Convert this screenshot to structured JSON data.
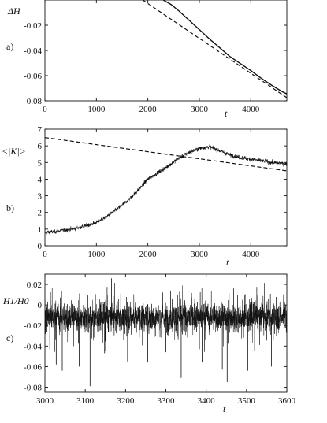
{
  "chart_data": [
    {
      "panel": "a)",
      "type": "line",
      "ylabel": "ΔH",
      "xlabel": "t",
      "xlim": [
        0,
        4700
      ],
      "ylim": [
        -0.08,
        0.0
      ],
      "xticks": [
        0,
        1000,
        2000,
        3000,
        4000
      ],
      "yticks": [
        -0.02,
        -0.04,
        -0.06,
        -0.08
      ],
      "ytick_labels": [
        "-0.02",
        "-0.04",
        "-0.06",
        "-0.08"
      ],
      "series": [
        {
          "style": "solid",
          "x": [
            2300,
            2450,
            2600,
            2800,
            3000,
            3200,
            3400,
            3600,
            3800,
            4000,
            4200,
            4400,
            4600,
            4700
          ],
          "y": [
            0.0,
            -0.0035,
            -0.0085,
            -0.016,
            -0.0235,
            -0.031,
            -0.038,
            -0.045,
            -0.0505,
            -0.056,
            -0.062,
            -0.0675,
            -0.0725,
            -0.0745
          ]
        },
        {
          "style": "dashed",
          "x": [
            1900,
            4700
          ],
          "y": [
            0.0,
            -0.0775
          ]
        }
      ]
    },
    {
      "panel": "b)",
      "type": "line",
      "ylabel": "<|K|>",
      "xlabel": "t",
      "xlim": [
        0,
        4700
      ],
      "ylim": [
        0,
        7
      ],
      "xticks": [
        0,
        1000,
        2000,
        3000,
        4000
      ],
      "yticks": [
        0,
        1,
        2,
        3,
        4,
        5,
        6,
        7
      ],
      "series": [
        {
          "style": "noisy",
          "noise_amplitude": 0.13,
          "x": [
            0,
            200,
            400,
            600,
            800,
            1000,
            1200,
            1400,
            1600,
            1800,
            2000,
            2200,
            2400,
            2600,
            2800,
            3000,
            3200,
            3400,
            3600,
            3800,
            4000,
            4200,
            4400,
            4600,
            4700
          ],
          "y": [
            0.8,
            0.85,
            0.95,
            1.05,
            1.2,
            1.4,
            1.75,
            2.2,
            2.7,
            3.3,
            4.0,
            4.4,
            4.8,
            5.25,
            5.6,
            5.85,
            5.95,
            5.7,
            5.45,
            5.3,
            5.2,
            5.1,
            5.0,
            4.95,
            4.9
          ]
        },
        {
          "style": "dashed",
          "x": [
            0,
            4700
          ],
          "y": [
            6.5,
            4.5
          ]
        }
      ]
    },
    {
      "panel": "c)",
      "type": "line",
      "ylabel": "H1/H0",
      "xlabel": "t",
      "xlim": [
        3000,
        3600
      ],
      "ylim": [
        -0.085,
        0.03
      ],
      "xticks": [
        3000,
        3100,
        3200,
        3300,
        3400,
        3500,
        3600
      ],
      "yticks": [
        0.02,
        0.0,
        -0.02,
        -0.04,
        -0.06,
        -0.08
      ],
      "ytick_labels": [
        "0.02",
        "0",
        "-0.02",
        "-0.04",
        "-0.06",
        "-0.08"
      ],
      "series": [
        {
          "style": "noisy",
          "mean": -0.012,
          "noise_amplitude": 0.014,
          "spikes": [
            {
              "x": 3028,
              "y": -0.058
            },
            {
              "x": 3043,
              "y": -0.064
            },
            {
              "x": 3085,
              "y": -0.06
            },
            {
              "x": 3112,
              "y": -0.079
            },
            {
              "x": 3148,
              "y": -0.047
            },
            {
              "x": 3165,
              "y": 0.026
            },
            {
              "x": 3205,
              "y": -0.055
            },
            {
              "x": 3255,
              "y": -0.056
            },
            {
              "x": 3300,
              "y": -0.046
            },
            {
              "x": 3338,
              "y": -0.071
            },
            {
              "x": 3390,
              "y": -0.056
            },
            {
              "x": 3440,
              "y": -0.063
            },
            {
              "x": 3452,
              "y": -0.075
            },
            {
              "x": 3503,
              "y": -0.064
            },
            {
              "x": 3562,
              "y": -0.06
            }
          ]
        }
      ]
    }
  ]
}
